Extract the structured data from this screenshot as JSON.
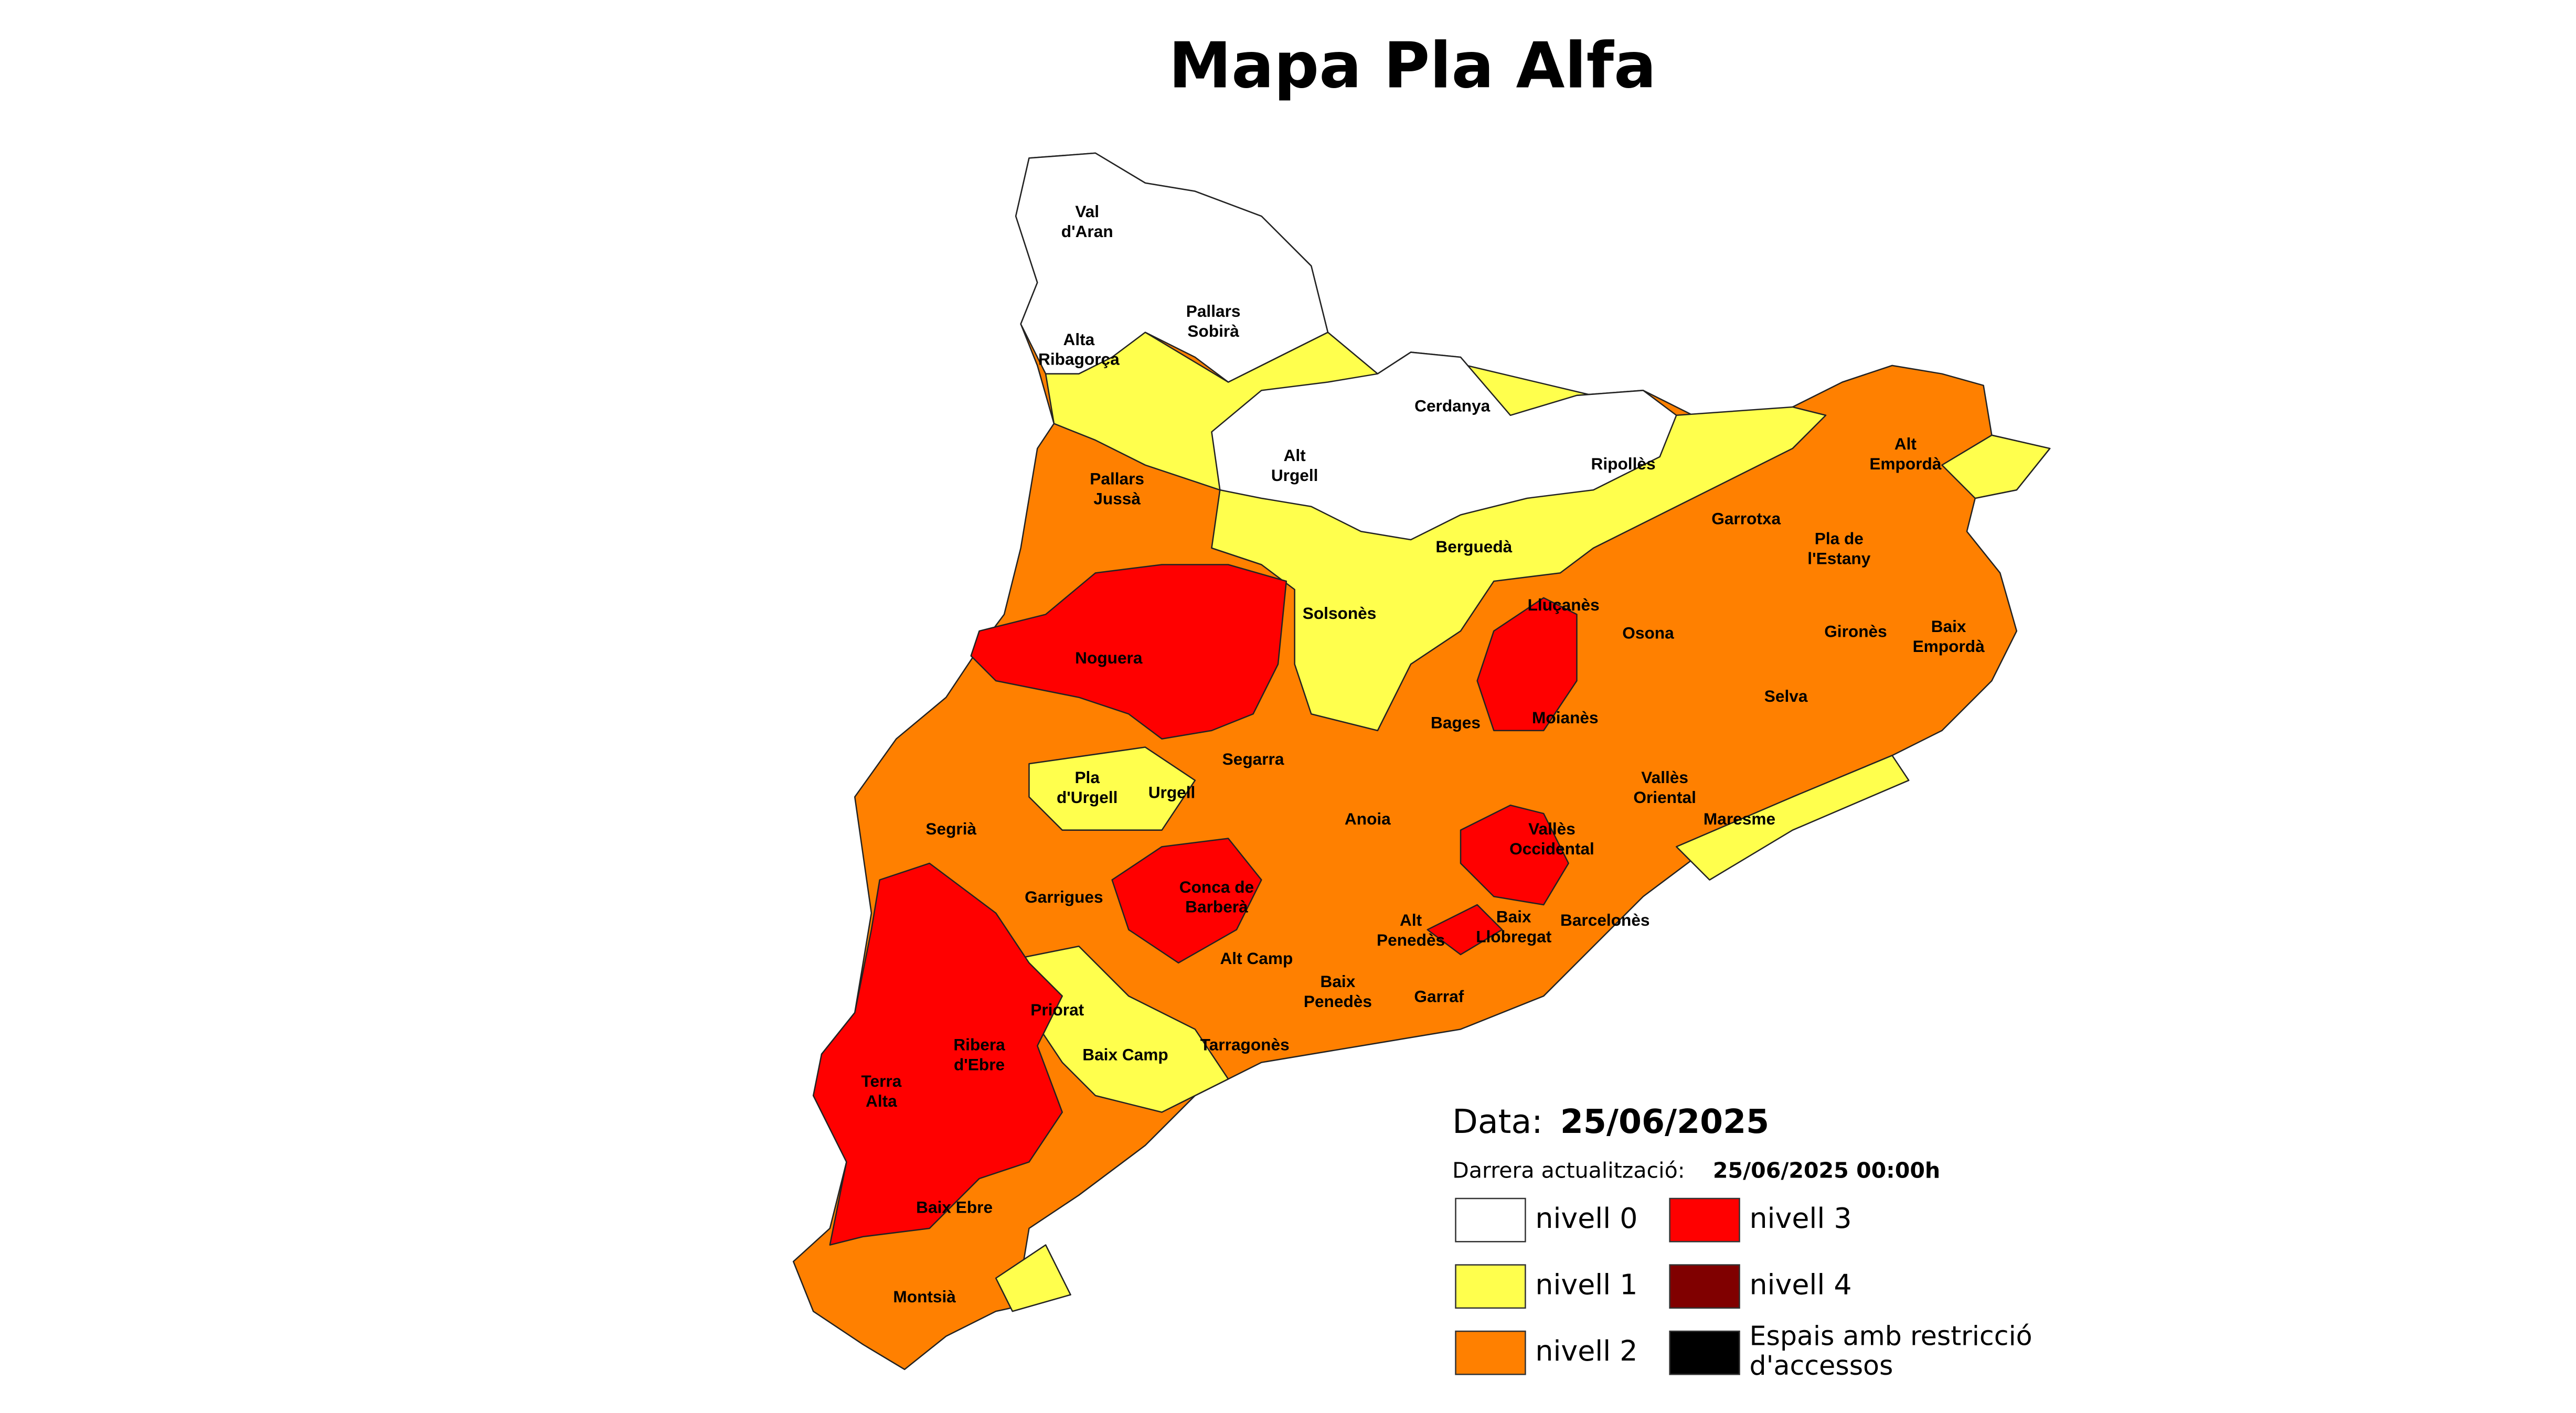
{
  "title": "Mapa Pla Alfa",
  "comarques": [
    [
      "Val",
      "d'Aran"
    ],
    [
      "Pallars",
      "Sobirà"
    ],
    [
      "Alta",
      "Ribagorça"
    ],
    [
      "Cerdanya"
    ],
    [
      "Alt",
      "Urgell"
    ],
    [
      "Ripollès"
    ],
    [
      "Alt",
      "Empordà"
    ],
    [
      "Pallars",
      "Jussà"
    ],
    [
      "Garrotxa"
    ],
    [
      "Pla de",
      "l'Estany"
    ],
    [
      "Berguedà"
    ],
    [
      "Solsonès"
    ],
    [
      "Lluçanès"
    ],
    [
      "Osona"
    ],
    [
      "Gironès"
    ],
    [
      "Baix",
      "Empordà"
    ],
    [
      "Noguera"
    ],
    [
      "Selva"
    ],
    [
      "Bages"
    ],
    [
      "Moianès"
    ],
    [
      "Segarra"
    ],
    [
      "Pla",
      "d'Urgell"
    ],
    [
      "Urgell"
    ],
    [
      "Vallès",
      "Oriental"
    ],
    [
      "Maresme"
    ],
    [
      "Segrià"
    ],
    [
      "Anoia"
    ],
    [
      "Vallès",
      "Occidental"
    ],
    [
      "Garrigues"
    ],
    [
      "Conca de",
      "Barberà"
    ],
    [
      "Alt",
      "Penedès"
    ],
    [
      "Baix",
      "Llobregat"
    ],
    [
      "Barcelonès"
    ],
    [
      "Alt Camp"
    ],
    [
      "Baix",
      "Penedès"
    ],
    [
      "Garraf"
    ],
    [
      "Priorat"
    ],
    [
      "Tarragonès"
    ],
    [
      "Baix Camp"
    ],
    [
      "Ribera",
      "d'Ebre"
    ],
    [
      "Terra",
      "Alta"
    ],
    [
      "Baix Ebre"
    ],
    [
      "Montsià"
    ]
  ],
  "legend": {
    "date_label": "Data:",
    "date": "25/06/2025",
    "update_label": "Darrera actualització:",
    "update": "25/06/2025 00:00h",
    "items": [
      {
        "label": [
          "nivell 0"
        ],
        "color": "#ffffff"
      },
      {
        "label": [
          "nivell 1"
        ],
        "color": "#ffff4d"
      },
      {
        "label": [
          "nivell 2"
        ],
        "color": "#ff8000"
      },
      {
        "label": [
          "nivell 3"
        ],
        "color": "#ff0000"
      },
      {
        "label": [
          "nivell 4"
        ],
        "color": "#800000"
      },
      {
        "label": [
          "Espais amb restricció",
          "d'accessos"
        ],
        "color": "#000000"
      }
    ]
  }
}
